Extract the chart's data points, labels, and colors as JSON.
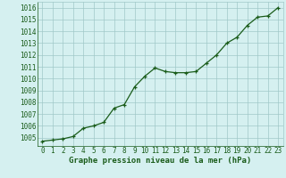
{
  "x": [
    0,
    1,
    2,
    3,
    4,
    5,
    6,
    7,
    8,
    9,
    10,
    11,
    12,
    13,
    14,
    15,
    16,
    17,
    18,
    19,
    20,
    21,
    22,
    23
  ],
  "y": [
    1004.7,
    1004.8,
    1004.9,
    1005.1,
    1005.8,
    1006.0,
    1006.3,
    1007.5,
    1007.8,
    1009.3,
    1010.2,
    1010.9,
    1010.6,
    1010.5,
    1010.5,
    1010.6,
    1011.3,
    1012.0,
    1013.0,
    1013.5,
    1014.5,
    1015.2,
    1015.3,
    1016.0
  ],
  "line_color": "#1a5c1a",
  "marker": "+",
  "marker_size": 3,
  "line_width": 0.9,
  "bg_color": "#d5f0f0",
  "grid_color": "#a0c8c8",
  "xlabel": "Graphe pression niveau de la mer (hPa)",
  "xlabel_fontsize": 6.5,
  "tick_fontsize": 5.5,
  "ylim": [
    1004.3,
    1016.5
  ],
  "xlim": [
    -0.5,
    23.5
  ],
  "yticks": [
    1005,
    1006,
    1007,
    1008,
    1009,
    1010,
    1011,
    1012,
    1013,
    1014,
    1015,
    1016
  ],
  "xticks": [
    0,
    1,
    2,
    3,
    4,
    5,
    6,
    7,
    8,
    9,
    10,
    11,
    12,
    13,
    14,
    15,
    16,
    17,
    18,
    19,
    20,
    21,
    22,
    23
  ]
}
